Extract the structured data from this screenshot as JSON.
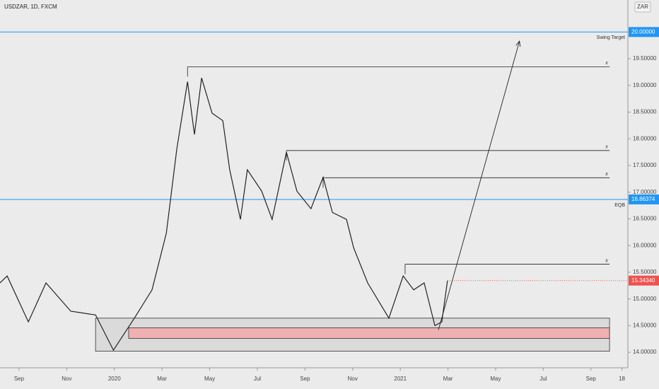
{
  "chart_data": {
    "type": "line",
    "title": "USDZAR, 1D, FXCM",
    "currency": "ZAR",
    "color": "#222222",
    "x": [
      0.2,
      0.5,
      1.39,
      2.13,
      3.17,
      4.21,
      4.96,
      5.84,
      6.58,
      7.18,
      7.62,
      8.07,
      8.36,
      8.66,
      9.1,
      9.55,
      9.84,
      10.29,
      10.58,
      11.18,
      11.62,
      12.22,
      12.66,
      13.25,
      13.76,
      14.15,
      14.74,
      15.04,
      15.63,
      16.52,
      17.12,
      17.56,
      18.0,
      18.45,
      18.74,
      18.98
    ],
    "values": [
      15.3,
      15.43,
      14.57,
      15.3,
      14.77,
      14.7,
      14.04,
      14.64,
      15.17,
      16.23,
      17.81,
      19.07,
      18.08,
      19.14,
      18.48,
      18.34,
      17.42,
      16.49,
      17.42,
      17.02,
      16.49,
      17.75,
      17.02,
      16.69,
      17.28,
      16.62,
      16.49,
      15.96,
      15.3,
      14.64,
      15.43,
      15.17,
      15.3,
      14.5,
      14.57,
      15.3434
    ],
    "last_label": "15.34340",
    "xlim": [
      0.2,
      26.55
    ],
    "ylim": [
      13.71,
      20.6
    ],
    "xticks": [
      {
        "value": 1,
        "label": "Sep"
      },
      {
        "value": 3,
        "label": "Nov"
      },
      {
        "value": 5,
        "label": "2020"
      },
      {
        "value": 7,
        "label": "Mar"
      },
      {
        "value": 9,
        "label": "May"
      },
      {
        "value": 11,
        "label": "Jul"
      },
      {
        "value": 13,
        "label": "Sep"
      },
      {
        "value": 15,
        "label": "Nov"
      },
      {
        "value": 17,
        "label": "2021"
      },
      {
        "value": 19,
        "label": "Mar"
      },
      {
        "value": 21,
        "label": "May"
      },
      {
        "value": 23,
        "label": "Jul"
      },
      {
        "value": 25,
        "label": "Sep"
      },
      {
        "value": 26.3,
        "label": "18"
      }
    ],
    "yticks": [
      {
        "value": 14,
        "label": "14.00000"
      },
      {
        "value": 14.5,
        "label": "14.50000"
      },
      {
        "value": 15,
        "label": "15.00000"
      },
      {
        "value": 15.5,
        "label": "15.50000"
      },
      {
        "value": 16,
        "label": "16.00000"
      },
      {
        "value": 16.5,
        "label": "16.50000"
      },
      {
        "value": 17,
        "label": "17.00000"
      },
      {
        "value": 17.5,
        "label": "17.50000"
      },
      {
        "value": 18,
        "label": "18.00000"
      },
      {
        "value": 18.5,
        "label": "18.50000"
      },
      {
        "value": 19,
        "label": "19.00000"
      },
      {
        "value": 19.5,
        "label": "19.50000"
      }
    ],
    "hlines": [
      {
        "value": 20,
        "value_label": "20.00000",
        "label": "Swing Target",
        "color": "#2196f3"
      },
      {
        "value": 16.86374,
        "value_label": "16.86374",
        "label": "EQB",
        "color": "#2196f3"
      }
    ],
    "levels": [
      {
        "x0": 8.07,
        "x1": 25.78,
        "value": 19.35,
        "label": "x"
      },
      {
        "x0": 12.22,
        "x1": 25.78,
        "value": 17.78,
        "label": "x"
      },
      {
        "x0": 13.76,
        "x1": 25.78,
        "value": 17.27,
        "label": "x"
      },
      {
        "x0": 17.2,
        "x1": 25.78,
        "value": 15.65,
        "label": "x"
      }
    ],
    "zones": [
      {
        "x0": 4.21,
        "x1": 25.78,
        "low": 14.02,
        "high": 14.64,
        "color": "#d6d6d6"
      },
      {
        "x0": 5.6,
        "x1": 25.78,
        "low": 14.26,
        "high": 14.46,
        "color": "#f2a5a5"
      }
    ],
    "arrow": {
      "x": [
        18.6,
        22.0
      ],
      "y": [
        14.42,
        19.83
      ]
    }
  }
}
